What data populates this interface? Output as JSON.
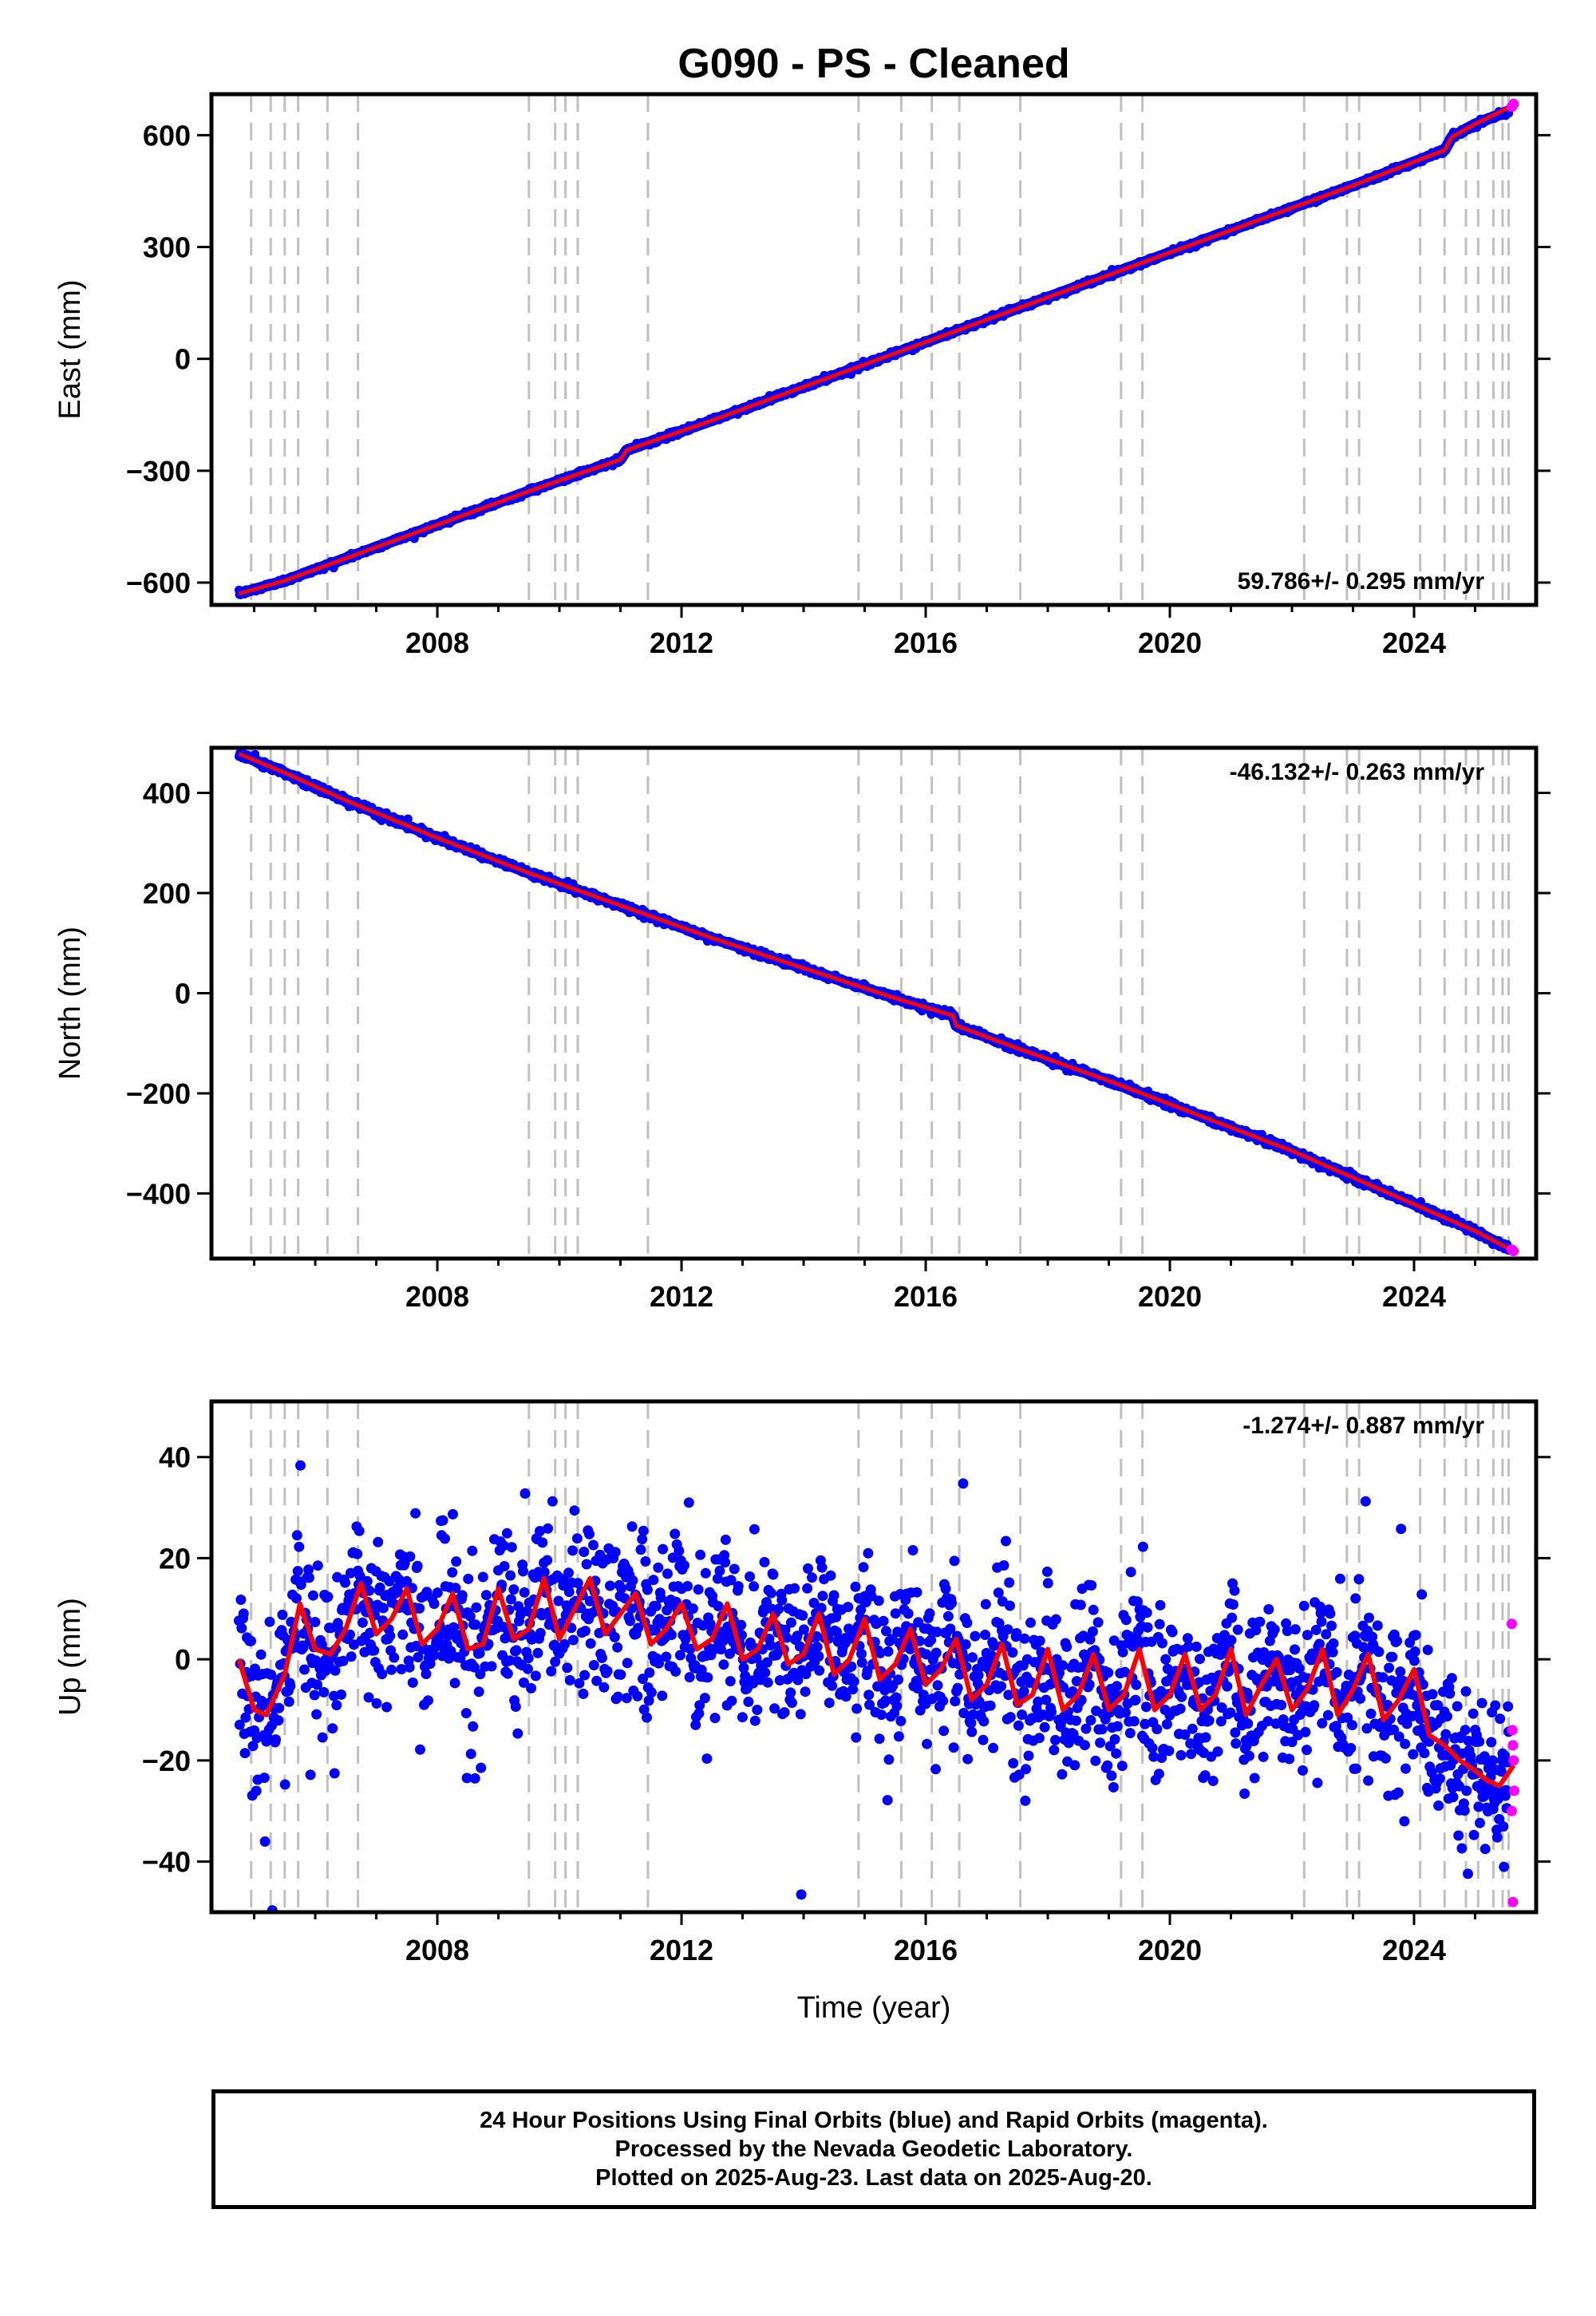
{
  "title": "G090  - PS - Cleaned",
  "colors": {
    "final_orbits": "#0000ff",
    "rapid_orbits": "#ff00ff",
    "model": "#ff0000",
    "event_lines": "#c0c0c0",
    "frame": "#000000"
  },
  "chart_data": [
    {
      "type": "scatter",
      "panel": "east",
      "ylabel": "East (mm)",
      "xlabel": "",
      "xlim": [
        2004.3,
        2026.0
      ],
      "ylim": [
        -660,
        710
      ],
      "yticks": [
        -600,
        -300,
        0,
        300,
        600
      ],
      "ytick_labels": [
        "−600",
        "−300",
        "0",
        "300",
        "600"
      ],
      "xticks": [
        2008,
        2012,
        2016,
        2020,
        2024
      ],
      "xtick_labels": [
        "2008",
        "2012",
        "2016",
        "2020",
        "2024"
      ],
      "grid": false,
      "annotation": "59.786+/- 0.295 mm/yr",
      "annotation_position": "bottom-right",
      "event_lines": [
        2004.95,
        2005.27,
        2005.5,
        2005.72,
        2006.2,
        2006.7,
        2009.5,
        2009.93,
        2010.1,
        2010.3,
        2011.45,
        2014.9,
        2015.6,
        2016.1,
        2016.55,
        2017.55,
        2019.2,
        2019.55,
        2022.2,
        2022.9,
        2023.1,
        2024.1,
        2024.5,
        2024.85,
        2025.05,
        2025.3,
        2025.45,
        2025.55
      ],
      "series": [
        {
          "name": "Final Orbits (blue)",
          "x": [
            2004.75,
            2005.5,
            2006.5,
            2008.0,
            2009.5,
            2011.0,
            2011.1,
            2012.5,
            2014.0,
            2015.5,
            2017.0,
            2018.5,
            2020.0,
            2021.5,
            2023.0,
            2024.5,
            2024.62,
            2025.0,
            2025.55
          ],
          "y": [
            -630,
            -595,
            -535,
            -445,
            -355,
            -270,
            -245,
            -165,
            -75,
            15,
            105,
            195,
            285,
            375,
            465,
            560,
            595,
            630,
            665
          ]
        },
        {
          "name": "Rapid Orbits (magenta)",
          "x": [
            2025.6,
            2025.62,
            2025.63
          ],
          "y": [
            676,
            680,
            684
          ]
        }
      ],
      "model_line": {
        "x": [
          2004.75,
          2005.5,
          2006.5,
          2008.0,
          2009.5,
          2011.0,
          2011.1,
          2012.5,
          2014.0,
          2015.5,
          2017.0,
          2018.5,
          2020.0,
          2021.5,
          2023.0,
          2024.5,
          2024.62,
          2025.0,
          2025.63
        ],
        "y": [
          -630,
          -595,
          -535,
          -445,
          -355,
          -270,
          -245,
          -165,
          -75,
          15,
          105,
          195,
          285,
          375,
          465,
          560,
          595,
          630,
          680
        ]
      }
    },
    {
      "type": "scatter",
      "panel": "north",
      "ylabel": "North (mm)",
      "xlabel": "",
      "xlim": [
        2004.3,
        2026.0
      ],
      "ylim": [
        -530,
        490
      ],
      "yticks": [
        -400,
        -200,
        0,
        200,
        400
      ],
      "ytick_labels": [
        "−400",
        "−200",
        "0",
        "200",
        "400"
      ],
      "xticks": [
        2008,
        2012,
        2016,
        2020,
        2024
      ],
      "xtick_labels": [
        "2008",
        "2012",
        "2016",
        "2020",
        "2024"
      ],
      "grid": false,
      "annotation": "-46.132+/- 0.263 mm/yr",
      "annotation_position": "top-right",
      "event_lines": [
        2004.95,
        2005.27,
        2005.5,
        2005.72,
        2006.2,
        2006.7,
        2009.5,
        2009.93,
        2010.1,
        2010.3,
        2011.45,
        2014.9,
        2015.6,
        2016.1,
        2016.55,
        2017.55,
        2019.2,
        2019.55,
        2022.2,
        2022.9,
        2023.1,
        2024.1,
        2024.5,
        2024.85,
        2025.05,
        2025.3,
        2025.45,
        2025.55
      ],
      "series": [
        {
          "name": "Final Orbits (blue)",
          "x": [
            2004.75,
            2005.5,
            2006.5,
            2008.0,
            2009.5,
            2011.0,
            2012.5,
            2014.0,
            2015.5,
            2016.45,
            2016.5,
            2017.5,
            2019.0,
            2020.5,
            2022.0,
            2023.5,
            2025.0,
            2025.55
          ],
          "y": [
            478,
            440,
            385,
            310,
            240,
            175,
            110,
            50,
            -10,
            -45,
            -65,
            -110,
            -175,
            -245,
            -315,
            -395,
            -475,
            -510
          ]
        },
        {
          "name": "Rapid Orbits (magenta)",
          "x": [
            2025.6,
            2025.63
          ],
          "y": [
            -512,
            -515
          ]
        }
      ],
      "model_line": {
        "x": [
          2004.75,
          2005.5,
          2006.5,
          2008.0,
          2009.5,
          2011.0,
          2012.5,
          2014.0,
          2015.5,
          2016.45,
          2016.5,
          2017.5,
          2019.0,
          2020.5,
          2022.0,
          2023.5,
          2025.0,
          2025.63
        ],
        "y": [
          478,
          440,
          385,
          310,
          240,
          175,
          110,
          50,
          -10,
          -45,
          -65,
          -110,
          -175,
          -245,
          -315,
          -395,
          -475,
          -515
        ]
      }
    },
    {
      "type": "scatter",
      "panel": "up",
      "ylabel": "Up (mm)",
      "xlabel": "Time (year)",
      "xlim": [
        2004.3,
        2026.0
      ],
      "ylim": [
        -50,
        51
      ],
      "yticks": [
        -40,
        -20,
        0,
        20,
        40
      ],
      "ytick_labels": [
        "−40",
        "−20",
        "0",
        "20",
        "40"
      ],
      "xticks": [
        2008,
        2012,
        2016,
        2020,
        2024
      ],
      "xtick_labels": [
        "2008",
        "2012",
        "2016",
        "2020",
        "2024"
      ],
      "grid": false,
      "annotation": "-1.274+/- 0.887 mm/yr",
      "annotation_position": "top-right",
      "event_lines": [
        2004.95,
        2005.27,
        2005.5,
        2005.72,
        2006.2,
        2006.7,
        2009.5,
        2009.93,
        2010.1,
        2010.3,
        2011.45,
        2014.9,
        2015.6,
        2016.1,
        2016.55,
        2017.55,
        2019.2,
        2019.55,
        2022.2,
        2022.9,
        2023.1,
        2024.1,
        2024.5,
        2024.85,
        2025.05,
        2025.3,
        2025.45,
        2025.55
      ],
      "scatter_spread_mm": 8,
      "series": [
        {
          "name": "Final Orbits (blue)",
          "x": [
            2004.75,
            2005.0,
            2005.2,
            2005.5,
            2005.75,
            2006.0,
            2006.25,
            2006.5,
            2006.75,
            2007.0,
            2007.25,
            2007.5,
            2007.75,
            2008.0,
            2008.25,
            2008.5,
            2008.75,
            2009.0,
            2009.25,
            2009.5,
            2009.75,
            2010.0,
            2010.25,
            2010.5,
            2010.75,
            2011.0,
            2011.25,
            2011.5,
            2011.75,
            2012.0,
            2012.25,
            2012.5,
            2012.75,
            2013.0,
            2013.25,
            2013.5,
            2013.75,
            2014.0,
            2014.25,
            2014.5,
            2014.75,
            2015.0,
            2015.25,
            2015.5,
            2015.75,
            2016.0,
            2016.25,
            2016.5,
            2016.75,
            2017.0,
            2017.25,
            2017.5,
            2017.75,
            2018.0,
            2018.25,
            2018.5,
            2018.75,
            2019.0,
            2019.25,
            2019.5,
            2019.75,
            2020.0,
            2020.25,
            2020.5,
            2020.75,
            2021.0,
            2021.25,
            2021.5,
            2021.75,
            2022.0,
            2022.25,
            2022.5,
            2022.75,
            2023.0,
            2023.25,
            2023.5,
            2023.75,
            2024.0,
            2024.25,
            2024.5,
            2024.75,
            2025.0,
            2025.2,
            2025.4,
            2025.55
          ],
          "y": [
            0,
            -10,
            -11,
            -3,
            11,
            2,
            1,
            6,
            15,
            5,
            8,
            14,
            3,
            6,
            13,
            2,
            3,
            14,
            4,
            6,
            16,
            4,
            10,
            16,
            5,
            9,
            13,
            3,
            6,
            11,
            2,
            4,
            11,
            0,
            2,
            9,
            -1,
            1,
            9,
            -3,
            0,
            8,
            -4,
            -1,
            6,
            -5,
            -2,
            4,
            -8,
            -5,
            3,
            -9,
            -7,
            2,
            -10,
            -7,
            1,
            -10,
            -7,
            2,
            -10,
            -7,
            1,
            -10,
            -7,
            2,
            -11,
            -5,
            0,
            -10,
            -6,
            2,
            -11,
            -6,
            1,
            -12,
            -8,
            -2,
            -15,
            -17,
            -20,
            -22,
            -24,
            -25,
            -22
          ]
        },
        {
          "name": "Rapid Orbits (magenta)",
          "x": [
            2025.6,
            2025.61,
            2025.62,
            2025.63,
            2025.64,
            2025.6,
            2025.62
          ],
          "y": [
            7,
            -14,
            -17,
            -20,
            -26,
            -30,
            -48
          ]
        }
      ],
      "model_line": {
        "x": [
          2004.75,
          2005.0,
          2005.2,
          2005.5,
          2005.75,
          2006.0,
          2006.25,
          2006.5,
          2006.75,
          2007.0,
          2007.25,
          2007.5,
          2007.75,
          2008.0,
          2008.25,
          2008.5,
          2008.75,
          2009.0,
          2009.25,
          2009.5,
          2009.75,
          2010.0,
          2010.25,
          2010.5,
          2010.75,
          2011.0,
          2011.25,
          2011.5,
          2011.75,
          2012.0,
          2012.25,
          2012.5,
          2012.75,
          2013.0,
          2013.25,
          2013.5,
          2013.75,
          2014.0,
          2014.25,
          2014.5,
          2014.75,
          2015.0,
          2015.25,
          2015.5,
          2015.75,
          2016.0,
          2016.25,
          2016.5,
          2016.75,
          2017.0,
          2017.25,
          2017.5,
          2017.75,
          2018.0,
          2018.25,
          2018.5,
          2018.75,
          2019.0,
          2019.25,
          2019.5,
          2019.75,
          2020.0,
          2020.25,
          2020.5,
          2020.75,
          2021.0,
          2021.25,
          2021.5,
          2021.75,
          2022.0,
          2022.25,
          2022.5,
          2022.75,
          2023.0,
          2023.25,
          2023.5,
          2023.75,
          2024.0,
          2024.25,
          2024.5,
          2024.75,
          2025.0,
          2025.2,
          2025.4,
          2025.63
        ],
        "y": [
          0,
          -10,
          -11,
          -3,
          11,
          2,
          1,
          6,
          15,
          5,
          8,
          14,
          3,
          6,
          13,
          2,
          3,
          14,
          4,
          6,
          16,
          4,
          10,
          16,
          5,
          9,
          13,
          3,
          6,
          11,
          2,
          4,
          11,
          0,
          2,
          9,
          -1,
          1,
          9,
          -3,
          0,
          8,
          -4,
          -1,
          6,
          -5,
          -2,
          4,
          -8,
          -5,
          3,
          -9,
          -7,
          2,
          -10,
          -7,
          1,
          -10,
          -7,
          2,
          -10,
          -7,
          1,
          -10,
          -7,
          2,
          -11,
          -5,
          0,
          -10,
          -6,
          2,
          -11,
          -6,
          1,
          -12,
          -8,
          -2,
          -15,
          -17,
          -20,
          -22,
          -24,
          -25,
          -21
        ]
      }
    }
  ],
  "caption": {
    "line1": "24 Hour Positions Using Final Orbits (blue) and Rapid Orbits (magenta).",
    "line2": "Processed by the Nevada Geodetic Laboratory.",
    "line3": "Plotted on 2025-Aug-23. Last data on 2025-Aug-20."
  }
}
